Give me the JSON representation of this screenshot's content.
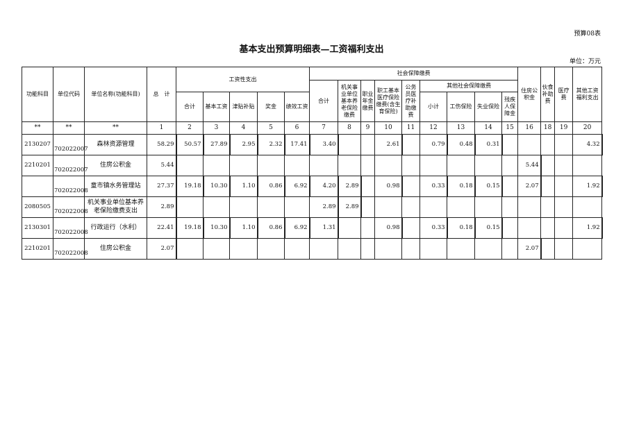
{
  "form_no": "预算08表",
  "title": "基本支出预算明细表—工资福利支出",
  "unit": "单位：万元",
  "headers": {
    "func": "功能科目",
    "code": "单位代码",
    "name": "单位名称(功能科目)",
    "total": "总　计",
    "wage": "工资性支出",
    "wage_sub": [
      "合计",
      "基本工资",
      "津贴补贴",
      "奖金",
      "绩效工资"
    ],
    "social": "社会保障缴费",
    "social_sum": "合计",
    "pension": "机关事业单位基本养老保险缴费",
    "annuity": "职业年金缴费",
    "medical": "职工基本医疗保险缴费(含生育保险)",
    "civil_med": "公务员医疗补助缴费",
    "other_social": "其他社会保障缴费",
    "other_sub": [
      "小计",
      "工伤保险",
      "失业保险",
      "残疾人保障金"
    ],
    "housing": "住房公积金",
    "meal": "伙食补助费",
    "med_fee": "医疗费",
    "other_welfare": "其他工资福利支出"
  },
  "col_numbers": [
    "**",
    "**",
    "**",
    "1",
    "2",
    "3",
    "4",
    "5",
    "6",
    "7",
    "8",
    "9",
    "10",
    "11",
    "12",
    "13",
    "14",
    "15",
    "16",
    "18",
    "19",
    "20"
  ],
  "rows": [
    [
      "2130207",
      "702022007",
      "森林资源管理",
      "58.29",
      "50.57",
      "27.89",
      "2.95",
      "2.32",
      "17.41",
      "3.40",
      "",
      "",
      "2.61",
      "",
      "0.79",
      "0.48",
      "0.31",
      "",
      "",
      "",
      "",
      "4.32"
    ],
    [
      "2210201",
      "702022007",
      "住房公积金",
      "5.44",
      "",
      "",
      "",
      "",
      "",
      "",
      "",
      "",
      "",
      "",
      "",
      "",
      "",
      "",
      "5.44",
      "",
      "",
      ""
    ],
    [
      "",
      "702022008",
      "童市镇水务管理站",
      "27.37",
      "19.18",
      "10.30",
      "1.10",
      "0.86",
      "6.92",
      "4.20",
      "2.89",
      "",
      "0.98",
      "",
      "0.33",
      "0.18",
      "0.15",
      "",
      "2.07",
      "",
      "",
      "1.92"
    ],
    [
      "2080505",
      "702022008",
      "机关事业单位基本养老保险缴费支出",
      "2.89",
      "",
      "",
      "",
      "",
      "",
      "2.89",
      "2.89",
      "",
      "",
      "",
      "",
      "",
      "",
      "",
      "",
      "",
      "",
      ""
    ],
    [
      "2130301",
      "702022008",
      "行政运行（水利）",
      "22.41",
      "19.18",
      "10.30",
      "1.10",
      "0.86",
      "6.92",
      "1.31",
      "",
      "",
      "0.98",
      "",
      "0.33",
      "0.18",
      "0.15",
      "",
      "",
      "",
      "",
      "1.92"
    ],
    [
      "2210201",
      "702022008",
      "住房公积金",
      "2.07",
      "",
      "",
      "",
      "",
      "",
      "",
      "",
      "",
      "",
      "",
      "",
      "",
      "",
      "",
      "2.07",
      "",
      "",
      ""
    ]
  ]
}
